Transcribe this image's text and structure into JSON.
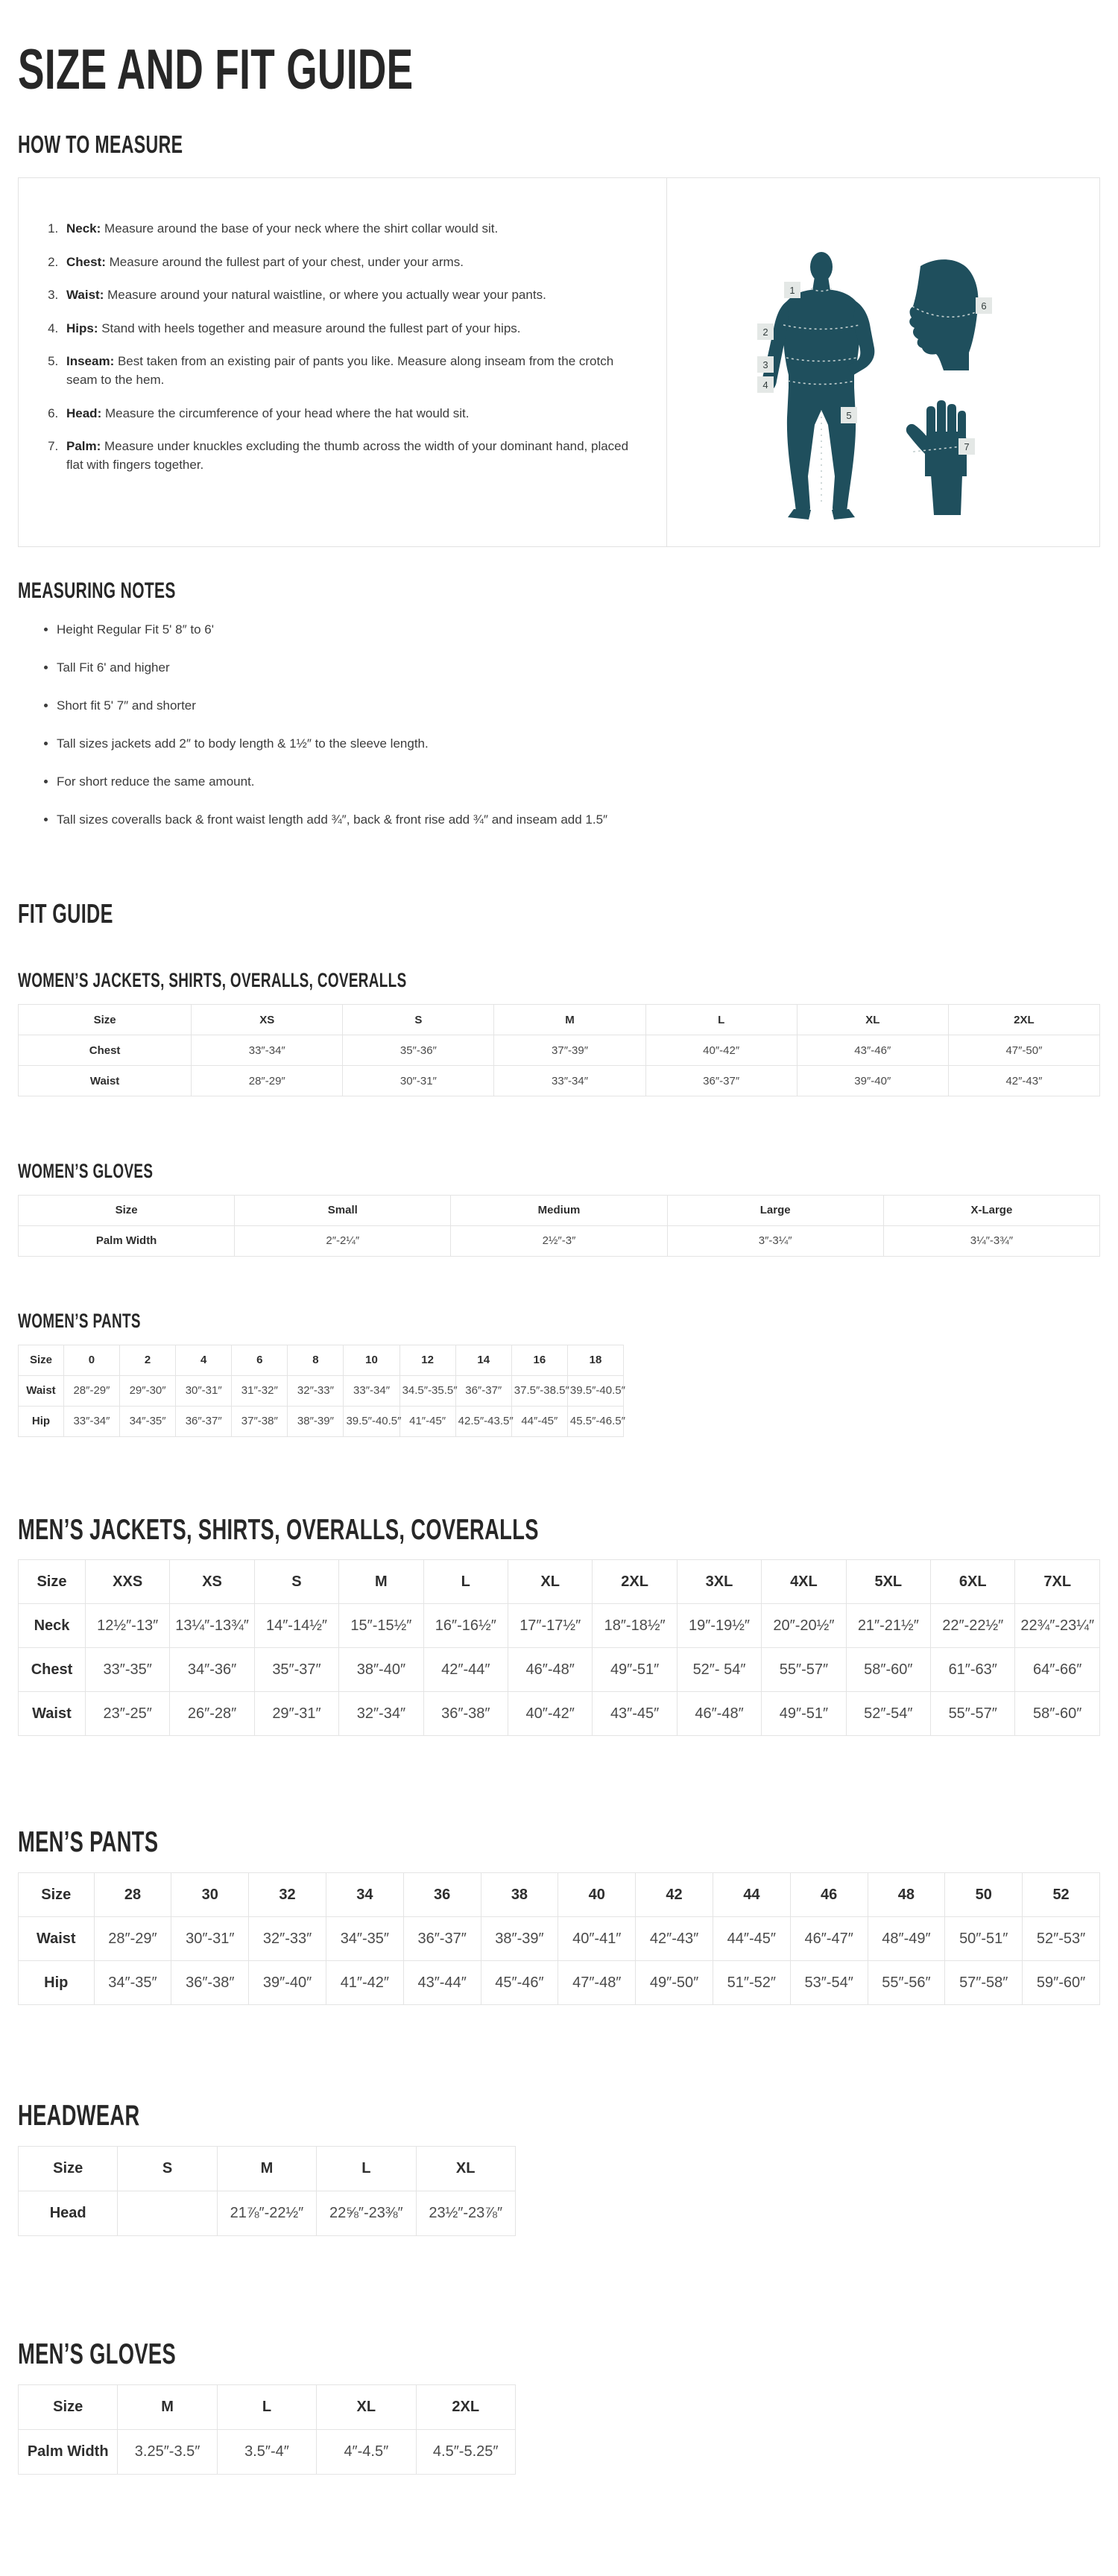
{
  "page": {
    "title": "SIZE AND FIT GUIDE"
  },
  "how_to_measure": {
    "heading": "HOW TO MEASURE",
    "steps": [
      {
        "label": "Neck:",
        "text": "Measure around the base of your neck where the shirt collar would sit."
      },
      {
        "label": "Chest:",
        "text": "Measure around the fullest part of your chest, under your arms."
      },
      {
        "label": "Waist:",
        "text": "Measure around your natural waistline, or where you actually wear your pants."
      },
      {
        "label": "Hips:",
        "text": "Stand with heels together and measure around the fullest part of your hips."
      },
      {
        "label": "Inseam:",
        "text": "Best taken from an existing pair of pants you like. Measure along inseam from the crotch seam to the hem."
      },
      {
        "label": "Head:",
        "text": "Measure the circumference of your head where the hat would sit."
      },
      {
        "label": "Palm:",
        "text": "Measure under knuckles excluding the thumb across the width of your dominant hand, placed flat with fingers together."
      }
    ]
  },
  "illustration": {
    "silhouette_color": "#1f4f5d",
    "dash_color": "#c3cfcf",
    "marker_bg": "#e4e8e6",
    "marker_text_color": "#343e3e",
    "markers": [
      "1",
      "2",
      "3",
      "4",
      "5",
      "6",
      "7"
    ]
  },
  "measuring_notes": {
    "heading": "MEASURING NOTES",
    "bullets": [
      "Height Regular Fit 5' 8″ to 6'",
      "Tall Fit 6' and higher",
      "Short fit 5' 7″ and shorter",
      "Tall sizes jackets add 2″ to body length & 1½″ to the sleeve length.",
      "For short reduce the same amount.",
      "Tall sizes coveralls back & front waist length add ¾″, back & front rise add ¾″ and inseam add 1.5″"
    ]
  },
  "fit_guide": {
    "heading": "FIT GUIDE"
  },
  "tables": [
    {
      "id": "womens-jackets",
      "heading": "WOMEN’S JACKETS, SHIRTS, OVERALLS, COVERALLS",
      "columns": [
        "Size",
        "XS",
        "S",
        "M",
        "L",
        "XL",
        "2XL"
      ],
      "rows": [
        {
          "label": "Chest",
          "values": [
            "33″-34″",
            "35″-36″",
            "37″-39″",
            "40″-42″",
            "43″-46″",
            "47″-50″"
          ]
        },
        {
          "label": "Waist",
          "values": [
            "28″-29″",
            "30″-31″",
            "33″-34″",
            "36″-37″",
            "39″-40″",
            "42″-43″"
          ]
        }
      ]
    },
    {
      "id": "womens-gloves",
      "heading": "WOMEN’S GLOVES",
      "columns": [
        "Size",
        "Small",
        "Medium",
        "Large",
        "X-Large"
      ],
      "rows": [
        {
          "label": "Palm Width",
          "values": [
            "2″-2¼″",
            "2½″-3″",
            "3″-3¼″",
            "3¼″-3¾″"
          ]
        }
      ]
    },
    {
      "id": "womens-pants",
      "heading": "WOMEN’S PANTS",
      "columns": [
        "Size",
        "0",
        "2",
        "4",
        "6",
        "8",
        "10",
        "12",
        "14",
        "16",
        "18"
      ],
      "rows": [
        {
          "label": "Waist",
          "values": [
            "28″-29″",
            "29″-30″",
            "30″-31″",
            "31″-32″",
            "32″-33″",
            "33″-34″",
            "34.5″-35.5″",
            "36″-37″",
            "37.5″-38.5″",
            "39.5″-40.5″"
          ]
        },
        {
          "label": "Hip",
          "values": [
            "33″-34″",
            "34″-35″",
            "36″-37″",
            "37″-38″",
            "38″-39″",
            "39.5″-40.5″",
            "41″-45″",
            "42.5″-43.5″",
            "44″-45″",
            "45.5″-46.5″"
          ]
        }
      ]
    },
    {
      "id": "mens-jackets",
      "heading": "MEN’S JACKETS, SHIRTS, OVERALLS, COVERALLS",
      "columns": [
        "Size",
        "XXS",
        "XS",
        "S",
        "M",
        "L",
        "XL",
        "2XL",
        "3XL",
        "4XL",
        "5XL",
        "6XL",
        "7XL"
      ],
      "rows": [
        {
          "label": "Neck",
          "values": [
            "12½″-13″",
            "13¼″-13¾″",
            "14″-14½″",
            "15″-15½″",
            "16″-16½″",
            "17″-17½″",
            "18″-18½″",
            "19″-19½″",
            "20″-20½″",
            "21″-21½″",
            "22″-22½″",
            "22¾″-23¼″"
          ]
        },
        {
          "label": "Chest",
          "values": [
            "33″-35″",
            "34″-36″",
            "35″-37″",
            "38″-40″",
            "42″-44″",
            "46″-48″",
            "49″-51″",
            "52″- 54″",
            "55″-57″",
            "58″-60″",
            "61″-63″",
            "64″-66″"
          ]
        },
        {
          "label": "Waist",
          "values": [
            "23″-25″",
            "26″-28″",
            "29″-31″",
            "32″-34″",
            "36″-38″",
            "40″-42″",
            "43″-45″",
            "46″-48″",
            "49″-51″",
            "52″-54″",
            "55″-57″",
            "58″-60″"
          ]
        }
      ]
    },
    {
      "id": "mens-pants",
      "heading": "MEN’S PANTS",
      "columns": [
        "Size",
        "28",
        "30",
        "32",
        "34",
        "36",
        "38",
        "40",
        "42",
        "44",
        "46",
        "48",
        "50",
        "52"
      ],
      "rows": [
        {
          "label": "Waist",
          "values": [
            "28″-29″",
            "30″-31″",
            "32″-33″",
            "34″-35″",
            "36″-37″",
            "38″-39″",
            "40″-41″",
            "42″-43″",
            "44″-45″",
            "46″-47″",
            "48″-49″",
            "50″-51″",
            "52″-53″"
          ]
        },
        {
          "label": "Hip",
          "values": [
            "34″-35″",
            "36″-38″",
            "39″-40″",
            "41″-42″",
            "43″-44″",
            "45″-46″",
            "47″-48″",
            "49″-50″",
            "51″-52″",
            "53″-54″",
            "55″-56″",
            "57″-58″",
            "59″-60″"
          ]
        }
      ]
    },
    {
      "id": "headwear",
      "heading": "HEADWEAR",
      "columns": [
        "Size",
        "S",
        "M",
        "L",
        "XL"
      ],
      "rows": [
        {
          "label": "Head",
          "values": [
            "",
            "21⅞″-22½″",
            "22⅝″-23⅜″",
            "23½″-23⅞″"
          ]
        }
      ]
    },
    {
      "id": "mens-gloves",
      "heading": "MEN’S GLOVES",
      "columns": [
        "Size",
        "M",
        "L",
        "XL",
        "2XL"
      ],
      "rows": [
        {
          "label": "Palm Width",
          "values": [
            "3.25″-3.5″",
            "3.5″-4″",
            "4″-4.5″",
            "4.5″-5.25″"
          ]
        }
      ]
    }
  ]
}
